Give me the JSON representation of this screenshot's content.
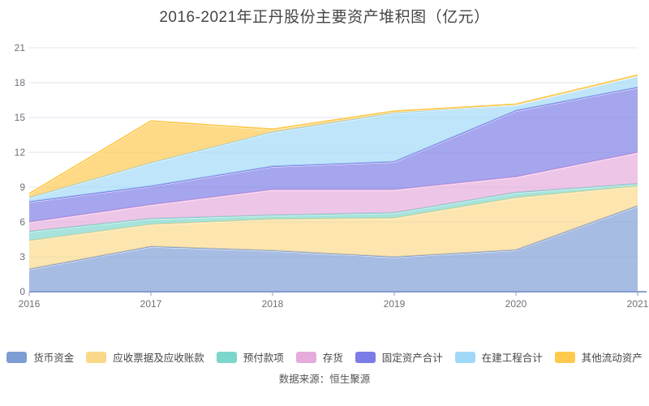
{
  "title": "2016-2021年正丹股份主要资产堆积图（亿元）",
  "source_note": "数据来源：恒生聚源",
  "chart_data": {
    "type": "area",
    "stacked": true,
    "title": "2016-2021年正丹股份主要资产堆积图（亿元）",
    "unit": "亿元",
    "x": [
      "2016",
      "2017",
      "2018",
      "2019",
      "2020",
      "2021"
    ],
    "xlabel": "",
    "ylabel": "",
    "ylim": [
      0,
      21
    ],
    "yticks": [
      0,
      3,
      6,
      9,
      12,
      15,
      18,
      21
    ],
    "grid": true,
    "legend_position": "bottom",
    "series": [
      {
        "name": "货币资金",
        "color": "#7E9CD4",
        "values": [
          1.95,
          3.9,
          3.55,
          3.0,
          3.6,
          7.4
        ]
      },
      {
        "name": "应收票据及应收账款",
        "color": "#FAD889",
        "values": [
          2.45,
          1.9,
          2.7,
          3.35,
          4.5,
          1.7
        ]
      },
      {
        "name": "预付款项",
        "color": "#7DD6CB",
        "values": [
          0.8,
          0.5,
          0.35,
          0.45,
          0.45,
          0.2
        ]
      },
      {
        "name": "存货",
        "color": "#E5ABDB",
        "values": [
          0.8,
          1.2,
          2.2,
          2.0,
          1.35,
          2.7
        ]
      },
      {
        "name": "固定资产合计",
        "color": "#7C7CE6",
        "values": [
          1.75,
          1.6,
          2.0,
          2.4,
          5.7,
          5.6
        ]
      },
      {
        "name": "在建工程合计",
        "color": "#A0D9F7",
        "values": [
          0.35,
          2.0,
          2.95,
          4.2,
          0.5,
          1.0
        ]
      },
      {
        "name": "其他流动资产",
        "color": "#FFC94D",
        "values": [
          0.35,
          3.6,
          0.25,
          0.15,
          0.05,
          0.05
        ]
      }
    ]
  },
  "colors": {
    "background": "#FFFFFF",
    "title_text": "#464646",
    "axis_text": "#6E7079",
    "legend_text": "#464646",
    "source_text": "#555555",
    "gridline": "#E0E6F1",
    "axis_line": "#8C9DC8",
    "fill_opacity": 0.68
  }
}
